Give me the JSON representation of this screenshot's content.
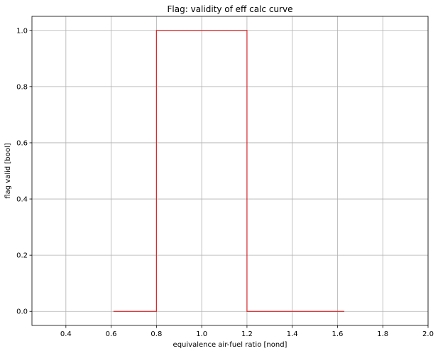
{
  "chart_data": {
    "type": "line",
    "title": "Flag: validity of eff calc curve",
    "xlabel": "equivalence air-fuel ratio [nond]",
    "ylabel": "flag valid [bool]",
    "xlim": [
      0.25,
      2.0
    ],
    "ylim": [
      -0.05,
      1.05
    ],
    "grid": true,
    "xticks": [
      0.4,
      0.6,
      0.8,
      1.0,
      1.2,
      1.4,
      1.6,
      1.8,
      2.0
    ],
    "xtick_labels": [
      "0.4",
      "0.6",
      "0.8",
      "1.0",
      "1.2",
      "1.4",
      "1.6",
      "1.8",
      "2.0"
    ],
    "yticks": [
      0.0,
      0.2,
      0.4,
      0.6,
      0.8,
      1.0
    ],
    "ytick_labels": [
      "0.0",
      "0.2",
      "0.4",
      "0.6",
      "0.8",
      "1.0"
    ],
    "series": [
      {
        "color": "#d62728",
        "x": [
          0.61,
          0.8,
          0.8,
          1.2,
          1.2,
          1.63
        ],
        "y": [
          0,
          0,
          1,
          1,
          0,
          0
        ]
      }
    ]
  }
}
